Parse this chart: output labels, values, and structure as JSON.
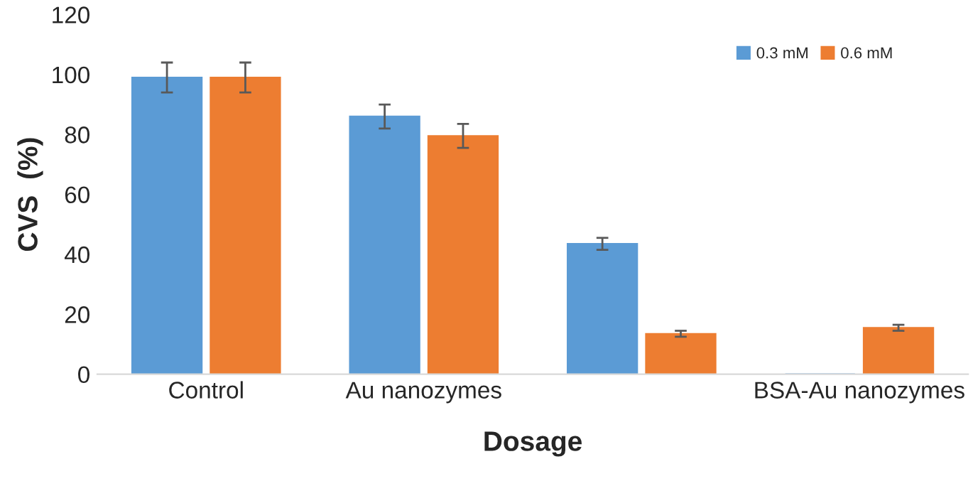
{
  "chart_data": {
    "type": "bar",
    "xlabel": "Dosage",
    "ylabel": "CVS  (%)",
    "categories": [
      "Control",
      "Au nanozymes",
      null,
      "BSA-Au nanozymes"
    ],
    "series": [
      {
        "name": "0.3 mM",
        "color": "#5b9bd5",
        "values": [
          99,
          86,
          43.5,
          0
        ],
        "errors": [
          5,
          4,
          2,
          null
        ]
      },
      {
        "name": "0.6 mM",
        "color": "#ed7d31",
        "values": [
          99,
          79.5,
          13.5,
          15.5
        ],
        "errors": [
          5,
          4,
          1,
          1
        ]
      }
    ],
    "ylim": [
      0,
      120
    ],
    "yticks": [
      0,
      20,
      40,
      60,
      80,
      100,
      120
    ],
    "grid": false,
    "legend": "top right"
  }
}
